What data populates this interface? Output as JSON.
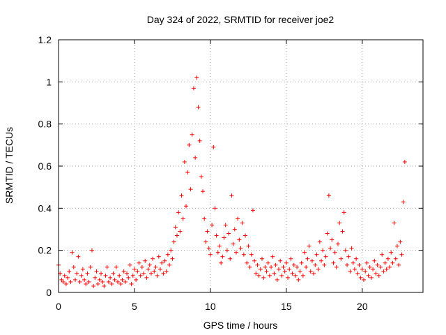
{
  "chart_data": {
    "type": "scatter",
    "title": "Day 324 of 2022, SRMTID for receiver joe2",
    "xlabel": "GPS time / hours",
    "ylabel": "SRMTID / TECUs",
    "xlim": [
      0,
      24
    ],
    "ylim": [
      0,
      1.2
    ],
    "xticks": [
      0,
      5,
      10,
      15,
      20
    ],
    "xtick_labels": [
      "0",
      "5",
      "10",
      "15",
      "20"
    ],
    "yticks": [
      0,
      0.2,
      0.4,
      0.6,
      0.8,
      1.0,
      1.2
    ],
    "ytick_labels": [
      "0",
      "0.2",
      "0.4",
      "0.6",
      "0.8",
      "1",
      "1.2"
    ],
    "grid": true,
    "marker": "+",
    "color": "#ff0000",
    "series": [
      {
        "name": "SRMTID",
        "points": [
          [
            0.0,
            0.13
          ],
          [
            0.1,
            0.09
          ],
          [
            0.2,
            0.06
          ],
          [
            0.3,
            0.05
          ],
          [
            0.4,
            0.08
          ],
          [
            0.5,
            0.04
          ],
          [
            0.6,
            0.07
          ],
          [
            0.7,
            0.1
          ],
          [
            0.8,
            0.05
          ],
          [
            0.9,
            0.19
          ],
          [
            1.0,
            0.12
          ],
          [
            1.1,
            0.06
          ],
          [
            1.2,
            0.09
          ],
          [
            1.3,
            0.17
          ],
          [
            1.4,
            0.05
          ],
          [
            1.5,
            0.08
          ],
          [
            1.6,
            0.11
          ],
          [
            1.7,
            0.06
          ],
          [
            1.8,
            0.04
          ],
          [
            1.9,
            0.09
          ],
          [
            2.0,
            0.05
          ],
          [
            2.1,
            0.12
          ],
          [
            2.2,
            0.2
          ],
          [
            2.3,
            0.03
          ],
          [
            2.4,
            0.07
          ],
          [
            2.5,
            0.1
          ],
          [
            2.6,
            0.04
          ],
          [
            2.7,
            0.06
          ],
          [
            2.8,
            0.09
          ],
          [
            2.9,
            0.05
          ],
          [
            3.0,
            0.03
          ],
          [
            3.1,
            0.08
          ],
          [
            3.2,
            0.12
          ],
          [
            3.3,
            0.05
          ],
          [
            3.4,
            0.07
          ],
          [
            3.5,
            0.04
          ],
          [
            3.6,
            0.09
          ],
          [
            3.7,
            0.06
          ],
          [
            3.8,
            0.12
          ],
          [
            3.9,
            0.05
          ],
          [
            4.0,
            0.08
          ],
          [
            4.1,
            0.04
          ],
          [
            4.2,
            0.06
          ],
          [
            4.3,
            0.1
          ],
          [
            4.4,
            0.05
          ],
          [
            4.5,
            0.09
          ],
          [
            4.6,
            0.07
          ],
          [
            4.7,
            0.13
          ],
          [
            4.8,
            0.04
          ],
          [
            4.9,
            0.08
          ],
          [
            5.0,
            0.11
          ],
          [
            5.1,
            0.06
          ],
          [
            5.2,
            0.1
          ],
          [
            5.3,
            0.14
          ],
          [
            5.4,
            0.08
          ],
          [
            5.5,
            0.12
          ],
          [
            5.6,
            0.09
          ],
          [
            5.7,
            0.15
          ],
          [
            5.8,
            0.07
          ],
          [
            5.9,
            0.11
          ],
          [
            6.0,
            0.13
          ],
          [
            6.1,
            0.09
          ],
          [
            6.2,
            0.16
          ],
          [
            6.3,
            0.1
          ],
          [
            6.4,
            0.12
          ],
          [
            6.5,
            0.08
          ],
          [
            6.6,
            0.17
          ],
          [
            6.7,
            0.11
          ],
          [
            6.8,
            0.14
          ],
          [
            6.9,
            0.09
          ],
          [
            7.0,
            0.15
          ],
          [
            7.1,
            0.1
          ],
          [
            7.2,
            0.18
          ],
          [
            7.3,
            0.13
          ],
          [
            7.4,
            0.2
          ],
          [
            7.5,
            0.16
          ],
          [
            7.6,
            0.24
          ],
          [
            7.7,
            0.31
          ],
          [
            7.8,
            0.27
          ],
          [
            7.9,
            0.38
          ],
          [
            8.0,
            0.29
          ],
          [
            8.1,
            0.46
          ],
          [
            8.2,
            0.35
          ],
          [
            8.3,
            0.62
          ],
          [
            8.4,
            0.41
          ],
          [
            8.5,
            0.57
          ],
          [
            8.6,
            0.7
          ],
          [
            8.7,
            0.49
          ],
          [
            8.8,
            0.75
          ],
          [
            8.9,
            0.97
          ],
          [
            9.0,
            0.64
          ],
          [
            9.1,
            1.02
          ],
          [
            9.2,
            0.88
          ],
          [
            9.3,
            0.72
          ],
          [
            9.4,
            0.55
          ],
          [
            9.5,
            0.48
          ],
          [
            9.6,
            0.35
          ],
          [
            9.7,
            0.24
          ],
          [
            9.8,
            0.29
          ],
          [
            9.9,
            0.21
          ],
          [
            10.0,
            0.18
          ],
          [
            10.1,
            0.32
          ],
          [
            10.2,
            0.69
          ],
          [
            10.3,
            0.4
          ],
          [
            10.4,
            0.27
          ],
          [
            10.5,
            0.19
          ],
          [
            10.6,
            0.22
          ],
          [
            10.7,
            0.14
          ],
          [
            10.8,
            0.17
          ],
          [
            10.9,
            0.26
          ],
          [
            11.0,
            0.32
          ],
          [
            11.1,
            0.2
          ],
          [
            11.2,
            0.28
          ],
          [
            11.3,
            0.16
          ],
          [
            11.4,
            0.46
          ],
          [
            11.5,
            0.23
          ],
          [
            11.6,
            0.3
          ],
          [
            11.7,
            0.19
          ],
          [
            11.8,
            0.35
          ],
          [
            11.9,
            0.25
          ],
          [
            12.0,
            0.21
          ],
          [
            12.1,
            0.33
          ],
          [
            12.2,
            0.18
          ],
          [
            12.3,
            0.27
          ],
          [
            12.4,
            0.14
          ],
          [
            12.5,
            0.22
          ],
          [
            12.6,
            0.12
          ],
          [
            12.7,
            0.18
          ],
          [
            12.8,
            0.39
          ],
          [
            12.9,
            0.15
          ],
          [
            13.0,
            0.09
          ],
          [
            13.1,
            0.13
          ],
          [
            13.2,
            0.08
          ],
          [
            13.3,
            0.11
          ],
          [
            13.4,
            0.16
          ],
          [
            13.5,
            0.07
          ],
          [
            13.6,
            0.12
          ],
          [
            13.7,
            0.1
          ],
          [
            13.8,
            0.14
          ],
          [
            13.9,
            0.08
          ],
          [
            14.0,
            0.12
          ],
          [
            14.1,
            0.17
          ],
          [
            14.2,
            0.09
          ],
          [
            14.3,
            0.13
          ],
          [
            14.4,
            0.06
          ],
          [
            14.5,
            0.11
          ],
          [
            14.6,
            0.15
          ],
          [
            14.7,
            0.08
          ],
          [
            14.8,
            0.12
          ],
          [
            14.9,
            0.1
          ],
          [
            15.0,
            0.14
          ],
          [
            15.1,
            0.07
          ],
          [
            15.2,
            0.11
          ],
          [
            15.3,
            0.16
          ],
          [
            15.4,
            0.09
          ],
          [
            15.5,
            0.13
          ],
          [
            15.6,
            0.08
          ],
          [
            15.7,
            0.12
          ],
          [
            15.8,
            0.06
          ],
          [
            15.9,
            0.1
          ],
          [
            16.0,
            0.14
          ],
          [
            16.1,
            0.08
          ],
          [
            16.2,
            0.19
          ],
          [
            16.3,
            0.12
          ],
          [
            16.4,
            0.16
          ],
          [
            16.5,
            0.22
          ],
          [
            16.6,
            0.1
          ],
          [
            16.7,
            0.15
          ],
          [
            16.8,
            0.09
          ],
          [
            16.9,
            0.13
          ],
          [
            17.0,
            0.18
          ],
          [
            17.1,
            0.11
          ],
          [
            17.2,
            0.24
          ],
          [
            17.3,
            0.15
          ],
          [
            17.4,
            0.2
          ],
          [
            17.5,
            0.13
          ],
          [
            17.6,
            0.17
          ],
          [
            17.7,
            0.28
          ],
          [
            17.8,
            0.46
          ],
          [
            17.9,
            0.21
          ],
          [
            18.0,
            0.25
          ],
          [
            18.1,
            0.14
          ],
          [
            18.2,
            0.19
          ],
          [
            18.3,
            0.12
          ],
          [
            18.4,
            0.23
          ],
          [
            18.5,
            0.33
          ],
          [
            18.6,
            0.16
          ],
          [
            18.7,
            0.29
          ],
          [
            18.8,
            0.38
          ],
          [
            18.9,
            0.2
          ],
          [
            19.0,
            0.13
          ],
          [
            19.1,
            0.17
          ],
          [
            19.2,
            0.1
          ],
          [
            19.3,
            0.21
          ],
          [
            19.4,
            0.14
          ],
          [
            19.5,
            0.11
          ],
          [
            19.6,
            0.16
          ],
          [
            19.7,
            0.09
          ],
          [
            19.8,
            0.13
          ],
          [
            19.9,
            0.07
          ],
          [
            20.0,
            0.11
          ],
          [
            20.1,
            0.06
          ],
          [
            20.2,
            0.1
          ],
          [
            20.3,
            0.14
          ],
          [
            20.4,
            0.08
          ],
          [
            20.5,
            0.12
          ],
          [
            20.6,
            0.07
          ],
          [
            20.7,
            0.11
          ],
          [
            20.8,
            0.15
          ],
          [
            20.9,
            0.09
          ],
          [
            21.0,
            0.13
          ],
          [
            21.1,
            0.08
          ],
          [
            21.2,
            0.12
          ],
          [
            21.3,
            0.18
          ],
          [
            21.4,
            0.1
          ],
          [
            21.5,
            0.14
          ],
          [
            21.6,
            0.11
          ],
          [
            21.7,
            0.16
          ],
          [
            21.8,
            0.12
          ],
          [
            21.9,
            0.19
          ],
          [
            22.0,
            0.14
          ],
          [
            22.1,
            0.33
          ],
          [
            22.2,
            0.16
          ],
          [
            22.3,
            0.22
          ],
          [
            22.4,
            0.13
          ],
          [
            22.5,
            0.24
          ],
          [
            22.6,
            0.18
          ],
          [
            22.7,
            0.43
          ],
          [
            22.8,
            0.62
          ]
        ]
      }
    ]
  }
}
